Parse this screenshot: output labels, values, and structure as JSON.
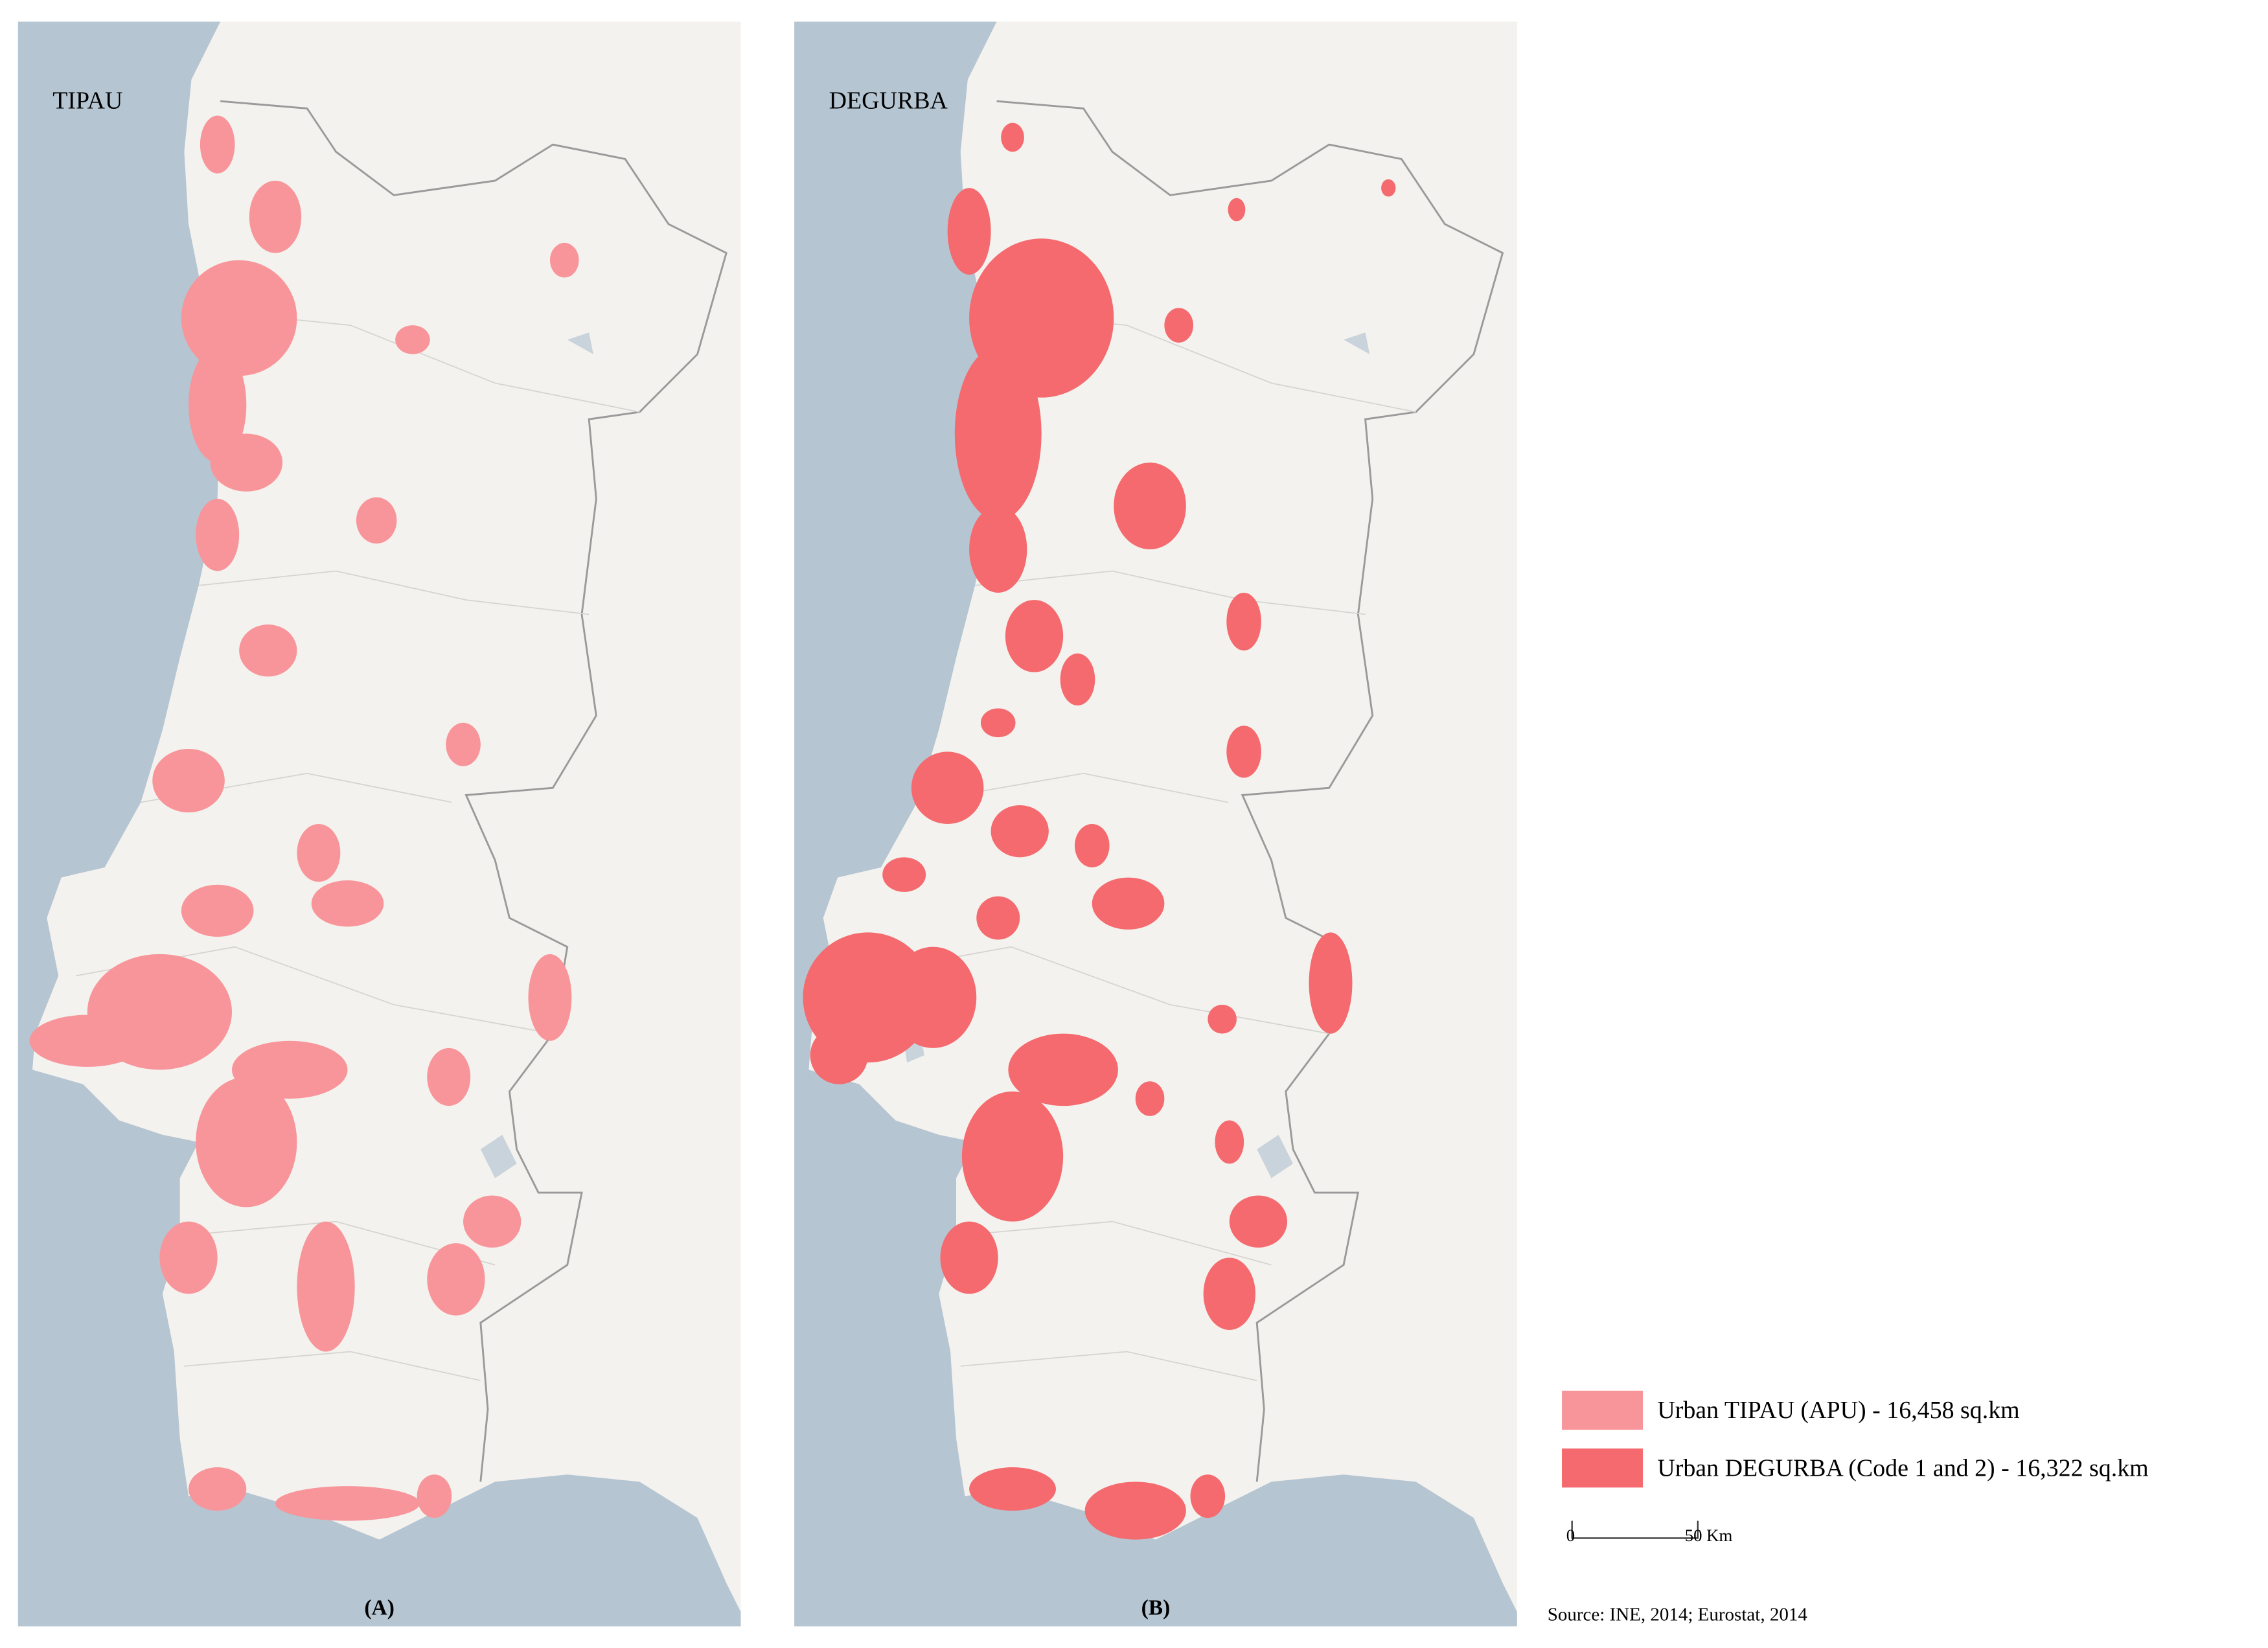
{
  "panels": [
    {
      "label": "TIPAU",
      "caption": "(A)",
      "color": "#f8959a"
    },
    {
      "label": "DEGURBA",
      "caption": "(B)",
      "color": "#f46a6e"
    }
  ],
  "legend": [
    {
      "label": "Urban TIPAU (APU) - 16,458 sq.km",
      "color": "#f8959a"
    },
    {
      "label": "Urban DEGURBA (Code 1 and 2) - 16,322 sq.km",
      "color": "#f46a6e"
    }
  ],
  "scale_bar": {
    "start": "0",
    "end": "50 Km"
  },
  "source": "Source: INE, 2014; Eurostat, 2014"
}
